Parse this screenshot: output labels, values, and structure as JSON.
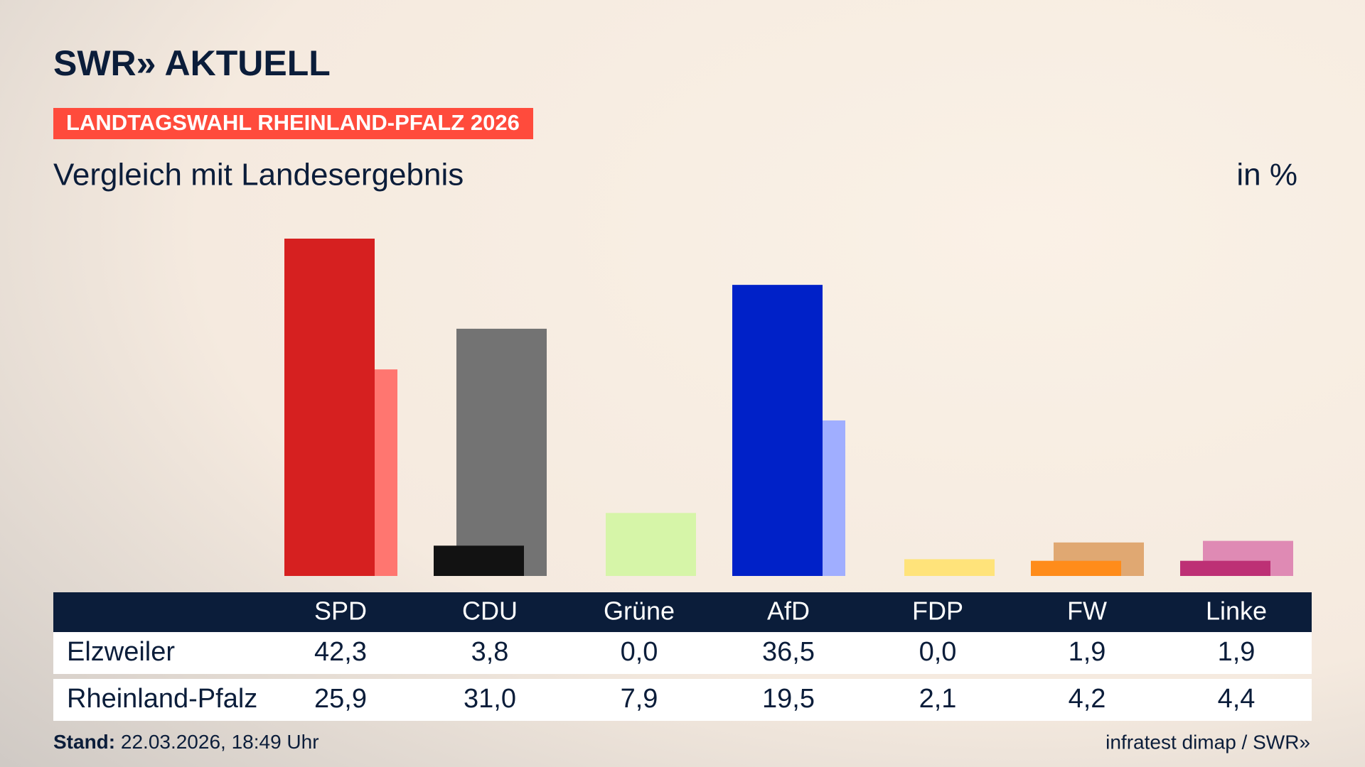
{
  "chart_data": {
    "type": "bar",
    "brand": "SWR» AKTUELL",
    "title": "LANDTAGSWAHL RHEINLAND-PFALZ 2026",
    "subtitle": "Vergleich mit Landesergebnis",
    "unit_label": "in %",
    "categories": [
      "SPD",
      "CDU",
      "Grüne",
      "AfD",
      "FDP",
      "FW",
      "Linke"
    ],
    "series": [
      {
        "name": "Elzweiler",
        "colors": [
          "#d62020",
          "#121212",
          "#4a9a2a",
          "#0021c8",
          "#ffd400",
          "#ff8c1a",
          "#bd3075"
        ],
        "values": [
          42.3,
          3.8,
          0.0,
          36.5,
          0.0,
          1.9,
          1.9
        ],
        "value_labels": [
          "42,3",
          "3,8",
          "0,0",
          "36,5",
          "0,0",
          "1,9",
          "1,9"
        ]
      },
      {
        "name": "Rheinland-Pfalz",
        "colors": [
          "#ff7670",
          "#737373",
          "#d6f5a8",
          "#a0aeff",
          "#ffe37a",
          "#e0a872",
          "#df8ab4"
        ],
        "values": [
          25.9,
          31.0,
          7.9,
          19.5,
          2.1,
          4.2,
          4.4
        ],
        "value_labels": [
          "25,9",
          "31,0",
          "7,9",
          "19,5",
          "2,1",
          "4,2",
          "4,4"
        ]
      }
    ],
    "footer": {
      "stand_label": "Stand:",
      "stand_value": "22.03.2026, 18:49 Uhr",
      "source": "infratest dimap / SWR»"
    }
  }
}
